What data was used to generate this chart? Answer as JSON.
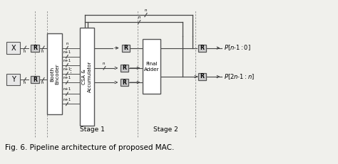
{
  "fig_width": 4.74,
  "fig_height": 2.31,
  "dpi": 100,
  "bg_color": "#f0f0ec",
  "box_edge": "#555555",
  "line_color": "#444444",
  "reg_face": "#cccccc",
  "white": "#ffffff",
  "caption": "Fig. 6. Pipeline architecture of proposed MAC.",
  "caption_fontsize": 7.5,
  "stage1_label": "Stage 1",
  "stage2_label": "Stage 2"
}
